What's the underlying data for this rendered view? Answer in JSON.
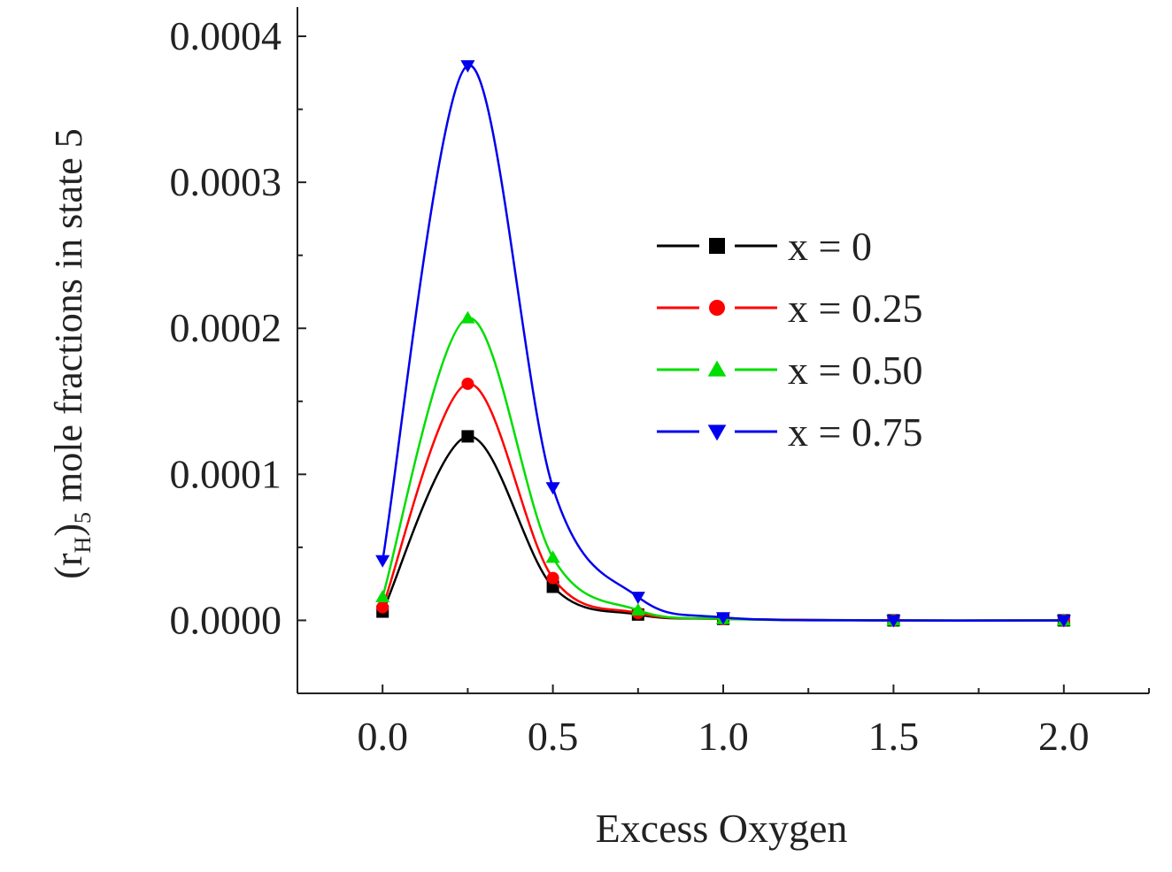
{
  "chart_data": {
    "type": "line",
    "title": "",
    "xlabel": "Excess Oxygen",
    "ylabel": {
      "prefix": "(r",
      "sub1": "H",
      "mid": ")",
      "sub2": "5",
      "suffix": " mole fractions in state 5"
    },
    "x": [
      0.0,
      0.25,
      0.5,
      0.75,
      1.0,
      1.5,
      2.0
    ],
    "xlim": [
      -0.25,
      2.25
    ],
    "ylim": [
      -5e-05,
      0.00042
    ],
    "xticks": [
      0.0,
      0.5,
      1.0,
      1.5,
      2.0
    ],
    "xtick_labels": [
      "0.0",
      "0.5",
      "1.0",
      "1.5",
      "2.0"
    ],
    "yticks": [
      0.0,
      0.0001,
      0.0002,
      0.0003,
      0.0004
    ],
    "ytick_labels": [
      "0.0000",
      "0.0001",
      "0.0002",
      "0.0003",
      "0.0004"
    ],
    "legend_position": "right-middle",
    "series": [
      {
        "name": "x = 0",
        "color": "#000000",
        "marker": "square",
        "values": [
          6e-06,
          0.000126,
          2.3e-05,
          4e-06,
          1e-06,
          0.0,
          0.0
        ]
      },
      {
        "name": "x = 0.25",
        "color": "#ff0000",
        "marker": "circle",
        "values": [
          9e-06,
          0.000162,
          2.9e-05,
          5e-06,
          1e-06,
          0.0,
          0.0
        ]
      },
      {
        "name": "x = 0.50",
        "color": "#00dd00",
        "marker": "triangle-up",
        "values": [
          1.6e-05,
          0.000207,
          4.3e-05,
          7e-06,
          1e-06,
          0.0,
          0.0
        ]
      },
      {
        "name": "x = 0.75",
        "color": "#0000ee",
        "marker": "triangle-down",
        "values": [
          4.1e-05,
          0.00038,
          9.1e-05,
          1.6e-05,
          2e-06,
          0.0,
          0.0
        ]
      }
    ]
  }
}
